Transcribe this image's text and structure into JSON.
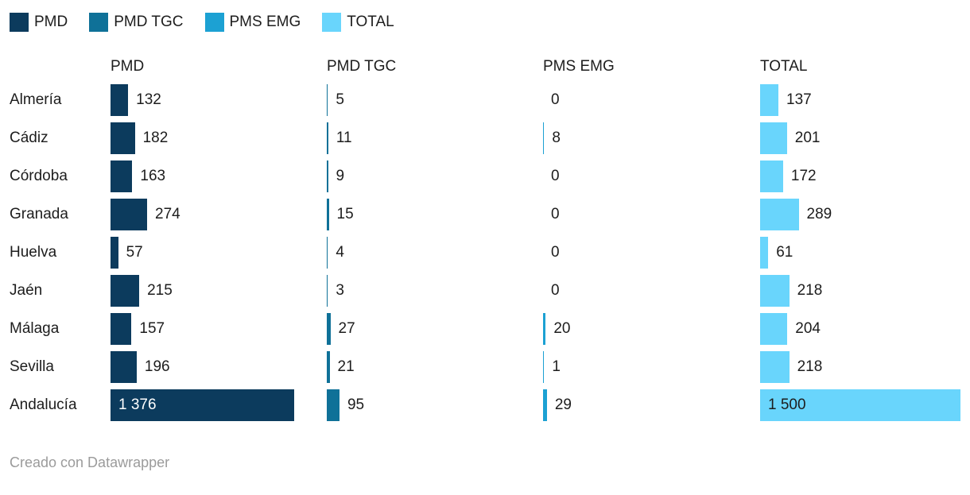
{
  "legend": {
    "items": [
      {
        "label": "PMD",
        "color": "#0c3b5d"
      },
      {
        "label": "PMD TGC",
        "color": "#0f7198"
      },
      {
        "label": "PMS EMG",
        "color": "#1ca1d3"
      },
      {
        "label": "TOTAL",
        "color": "#69d5fc"
      }
    ]
  },
  "chart_data": {
    "type": "bar",
    "orientation": "horizontal",
    "title": "",
    "xlabel": "",
    "ylabel": "",
    "grid": false,
    "legend_position": "top",
    "value_labels": true,
    "xlim": [
      0,
      1500
    ],
    "columns": [
      "PMD",
      "PMD TGC",
      "PMS EMG",
      "TOTAL"
    ],
    "categories": [
      "Almería",
      "Cádiz",
      "Córdoba",
      "Granada",
      "Huelva",
      "Jaén",
      "Málaga",
      "Sevilla",
      "Andalucía"
    ],
    "series": [
      {
        "name": "PMD",
        "color": "#0c3b5d",
        "inside_label_color": "#ffffff",
        "values": [
          132,
          182,
          163,
          274,
          57,
          215,
          157,
          196,
          1376
        ],
        "display": [
          "132",
          "182",
          "163",
          "274",
          "57",
          "215",
          "157",
          "196",
          "1 376"
        ]
      },
      {
        "name": "PMD TGC",
        "color": "#0f7198",
        "inside_label_color": "#ffffff",
        "values": [
          5,
          11,
          9,
          15,
          4,
          3,
          27,
          21,
          95
        ],
        "display": [
          "5",
          "11",
          "9",
          "15",
          "4",
          "3",
          "27",
          "21",
          "95"
        ]
      },
      {
        "name": "PMS EMG",
        "color": "#1ca1d3",
        "inside_label_color": "#ffffff",
        "values": [
          0,
          8,
          0,
          0,
          0,
          0,
          20,
          1,
          29
        ],
        "display": [
          "0",
          "8",
          "0",
          "0",
          "0",
          "0",
          "20",
          "1",
          "29"
        ]
      },
      {
        "name": "TOTAL",
        "color": "#69d5fc",
        "inside_label_color": "#1d1d1d",
        "values": [
          137,
          201,
          172,
          289,
          61,
          218,
          204,
          218,
          1500
        ],
        "display": [
          "137",
          "201",
          "172",
          "289",
          "61",
          "218",
          "204",
          "218",
          "1 500"
        ]
      }
    ]
  },
  "footer": {
    "credit": "Creado con Datawrapper"
  }
}
